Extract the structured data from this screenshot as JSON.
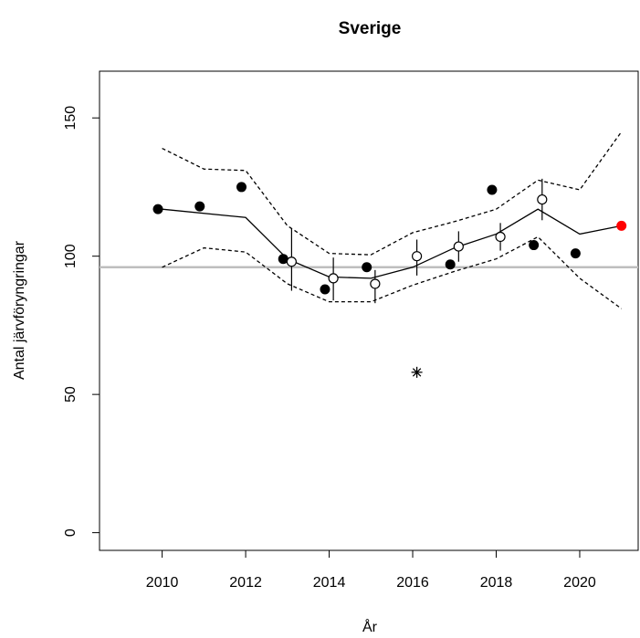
{
  "chart_data": {
    "type": "scatter",
    "title": "Sverige",
    "x_label": "År",
    "y_label": "Antal järvföryngringar",
    "xlim": [
      2008.5,
      2021.4
    ],
    "ylim": [
      -6.4,
      166.9
    ],
    "xticks": [
      2010,
      2012,
      2014,
      2016,
      2018,
      2020
    ],
    "yticks": [
      0,
      50,
      100,
      150
    ],
    "reference_line": {
      "value": 96,
      "color": "#bebebe"
    },
    "series": [
      {
        "kind": "line",
        "dash": true,
        "color": "#000000",
        "x": [
          2010,
          2011,
          2012,
          2013,
          2014,
          2015,
          2016,
          2017,
          2018,
          2019,
          2020,
          2021
        ],
        "values": [
          139,
          131.5,
          131,
          111,
          101,
          100.5,
          108.5,
          112.5,
          117,
          127.5,
          124,
          145
        ]
      },
      {
        "kind": "line",
        "dash": true,
        "color": "#000000",
        "x": [
          2010,
          2011,
          2012,
          2013,
          2014,
          2015,
          2016,
          2017,
          2018,
          2019,
          2020,
          2021
        ],
        "values": [
          96,
          103,
          101.5,
          90,
          83.5,
          83.5,
          89.5,
          94.5,
          99,
          107,
          92,
          81
        ]
      },
      {
        "kind": "line",
        "dash": false,
        "color": "#000000",
        "x": [
          2010,
          2012,
          2013,
          2014,
          2015,
          2016,
          2017,
          2018,
          2019,
          2020,
          2021
        ],
        "values": [
          117,
          114,
          99,
          92.5,
          92,
          96,
          103,
          108,
          117,
          108,
          111
        ]
      },
      {
        "kind": "points",
        "marker": "filled",
        "color": "#000000",
        "x": [
          2009.9,
          2010.9,
          2011.9,
          2012.9,
          2013.9,
          2014.9,
          2016.9,
          2017.9,
          2018.9,
          2019.9
        ],
        "values": [
          117,
          118,
          125,
          99,
          88,
          96,
          97,
          124,
          104,
          101
        ]
      },
      {
        "kind": "points",
        "marker": "filled",
        "color": "#ff0000",
        "x": [
          2021
        ],
        "values": [
          111
        ]
      },
      {
        "kind": "points",
        "marker": "asterisk",
        "color": "#000000",
        "x": [
          2016.1
        ],
        "values": [
          58
        ]
      },
      {
        "kind": "points",
        "marker": "open",
        "color": "#000000",
        "x": [
          2013.1,
          2014.1,
          2015.1,
          2016.1,
          2017.1,
          2018.1,
          2019.1
        ],
        "values": [
          98,
          92,
          90,
          100,
          103.5,
          107,
          120.5
        ],
        "low": [
          87.5,
          84,
          83,
          93,
          98,
          102,
          113
        ],
        "high": [
          110,
          99.5,
          95,
          106,
          109,
          112,
          128
        ]
      }
    ]
  }
}
